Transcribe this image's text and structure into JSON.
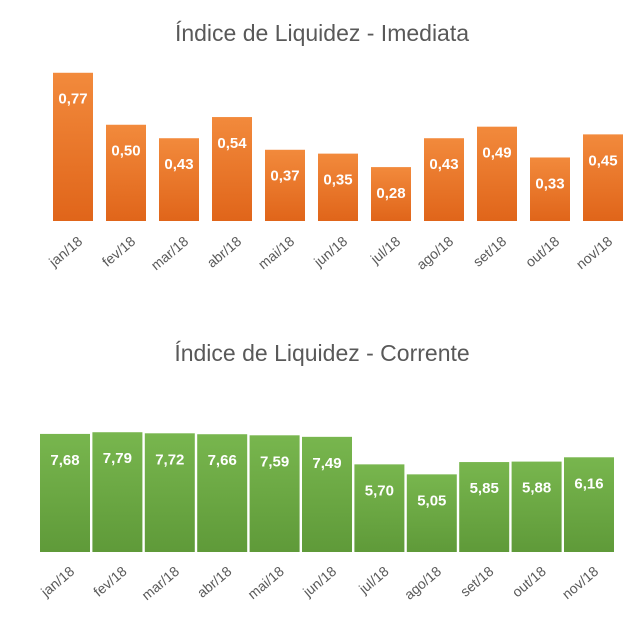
{
  "chart_data": [
    {
      "type": "bar",
      "title": "Índice de Liquidez - Imediata",
      "categories": [
        "jan/18",
        "fev/18",
        "mar/18",
        "abr/18",
        "mai/18",
        "jun/18",
        "jul/18",
        "ago/18",
        "set/18",
        "out/18",
        "nov/18"
      ],
      "values": [
        0.77,
        0.5,
        0.43,
        0.54,
        0.37,
        0.35,
        0.28,
        0.43,
        0.49,
        0.33,
        0.45
      ],
      "value_labels": [
        "0,77",
        "0,50",
        "0,43",
        "0,54",
        "0,37",
        "0,35",
        "0,28",
        "0,43",
        "0,49",
        "0,33",
        "0,45"
      ],
      "color": "#ed7d31",
      "ylim": [
        0,
        0.8
      ]
    },
    {
      "type": "bar",
      "title": "Índice de Liquidez - Corrente",
      "categories": [
        "jan/18",
        "fev/18",
        "mar/18",
        "abr/18",
        "mai/18",
        "jun/18",
        "jul/18",
        "ago/18",
        "set/18",
        "out/18",
        "nov/18"
      ],
      "values": [
        7.68,
        7.79,
        7.72,
        7.66,
        7.59,
        7.49,
        5.7,
        5.05,
        5.85,
        5.88,
        6.16
      ],
      "value_labels": [
        "7,68",
        "7,79",
        "7,72",
        "7,66",
        "7,59",
        "7,49",
        "5,70",
        "5,05",
        "5,85",
        "5,88",
        "6,16"
      ],
      "color": "#70ad47",
      "ylim": [
        0,
        8
      ]
    }
  ]
}
